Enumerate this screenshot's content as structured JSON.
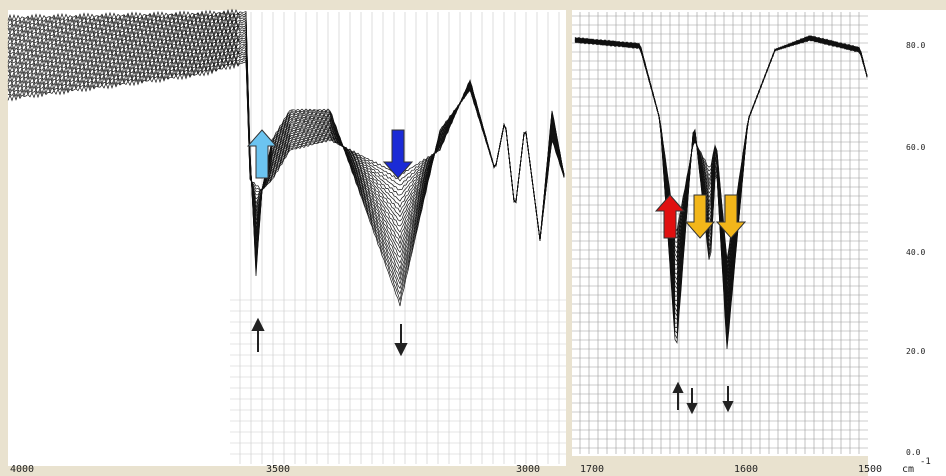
{
  "left_panel": {
    "x_axis_labels": [
      "4000",
      "3500",
      "3000"
    ]
  },
  "right_panel": {
    "x_axis_labels": [
      "1700",
      "1600",
      "1500"
    ],
    "unit": "cm",
    "unit_exponent": "-1",
    "y_axis_labels": [
      "80.0",
      "60.0",
      "40.0",
      "20.0",
      "0.0"
    ]
  }
}
